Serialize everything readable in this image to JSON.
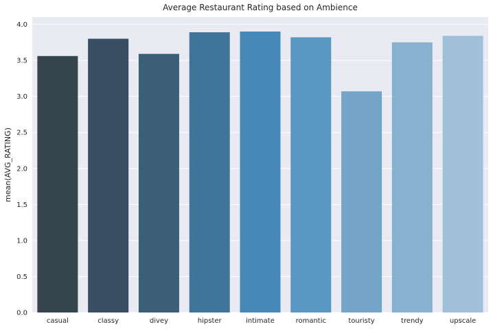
{
  "chart_data": {
    "type": "bar",
    "title": "Average Restaurant Rating based on Ambience",
    "xlabel": "",
    "ylabel": "mean(AVG_RATING)",
    "categories": [
      "casual",
      "classy",
      "divey",
      "hipster",
      "intimate",
      "romantic",
      "touristy",
      "trendy",
      "upscale"
    ],
    "values": [
      3.56,
      3.8,
      3.59,
      3.89,
      3.9,
      3.82,
      3.07,
      3.75,
      3.84
    ],
    "colors": [
      "#35444d",
      "#384f63",
      "#3c5f78",
      "#41749a",
      "#4689b8",
      "#5997c3",
      "#74a5c8",
      "#88b1cf",
      "#9fc0d8"
    ],
    "ylim": [
      0,
      4.1
    ],
    "yticks": [
      0.0,
      0.5,
      1.0,
      1.5,
      2.0,
      2.5,
      3.0,
      3.5,
      4.0
    ],
    "ytick_labels": [
      "0.0",
      "0.5",
      "1.0",
      "1.5",
      "2.0",
      "2.5",
      "3.0",
      "3.5",
      "4.0"
    ],
    "grid": true,
    "background_color": "#eaeaf2",
    "grid_color": "#ffffff"
  }
}
